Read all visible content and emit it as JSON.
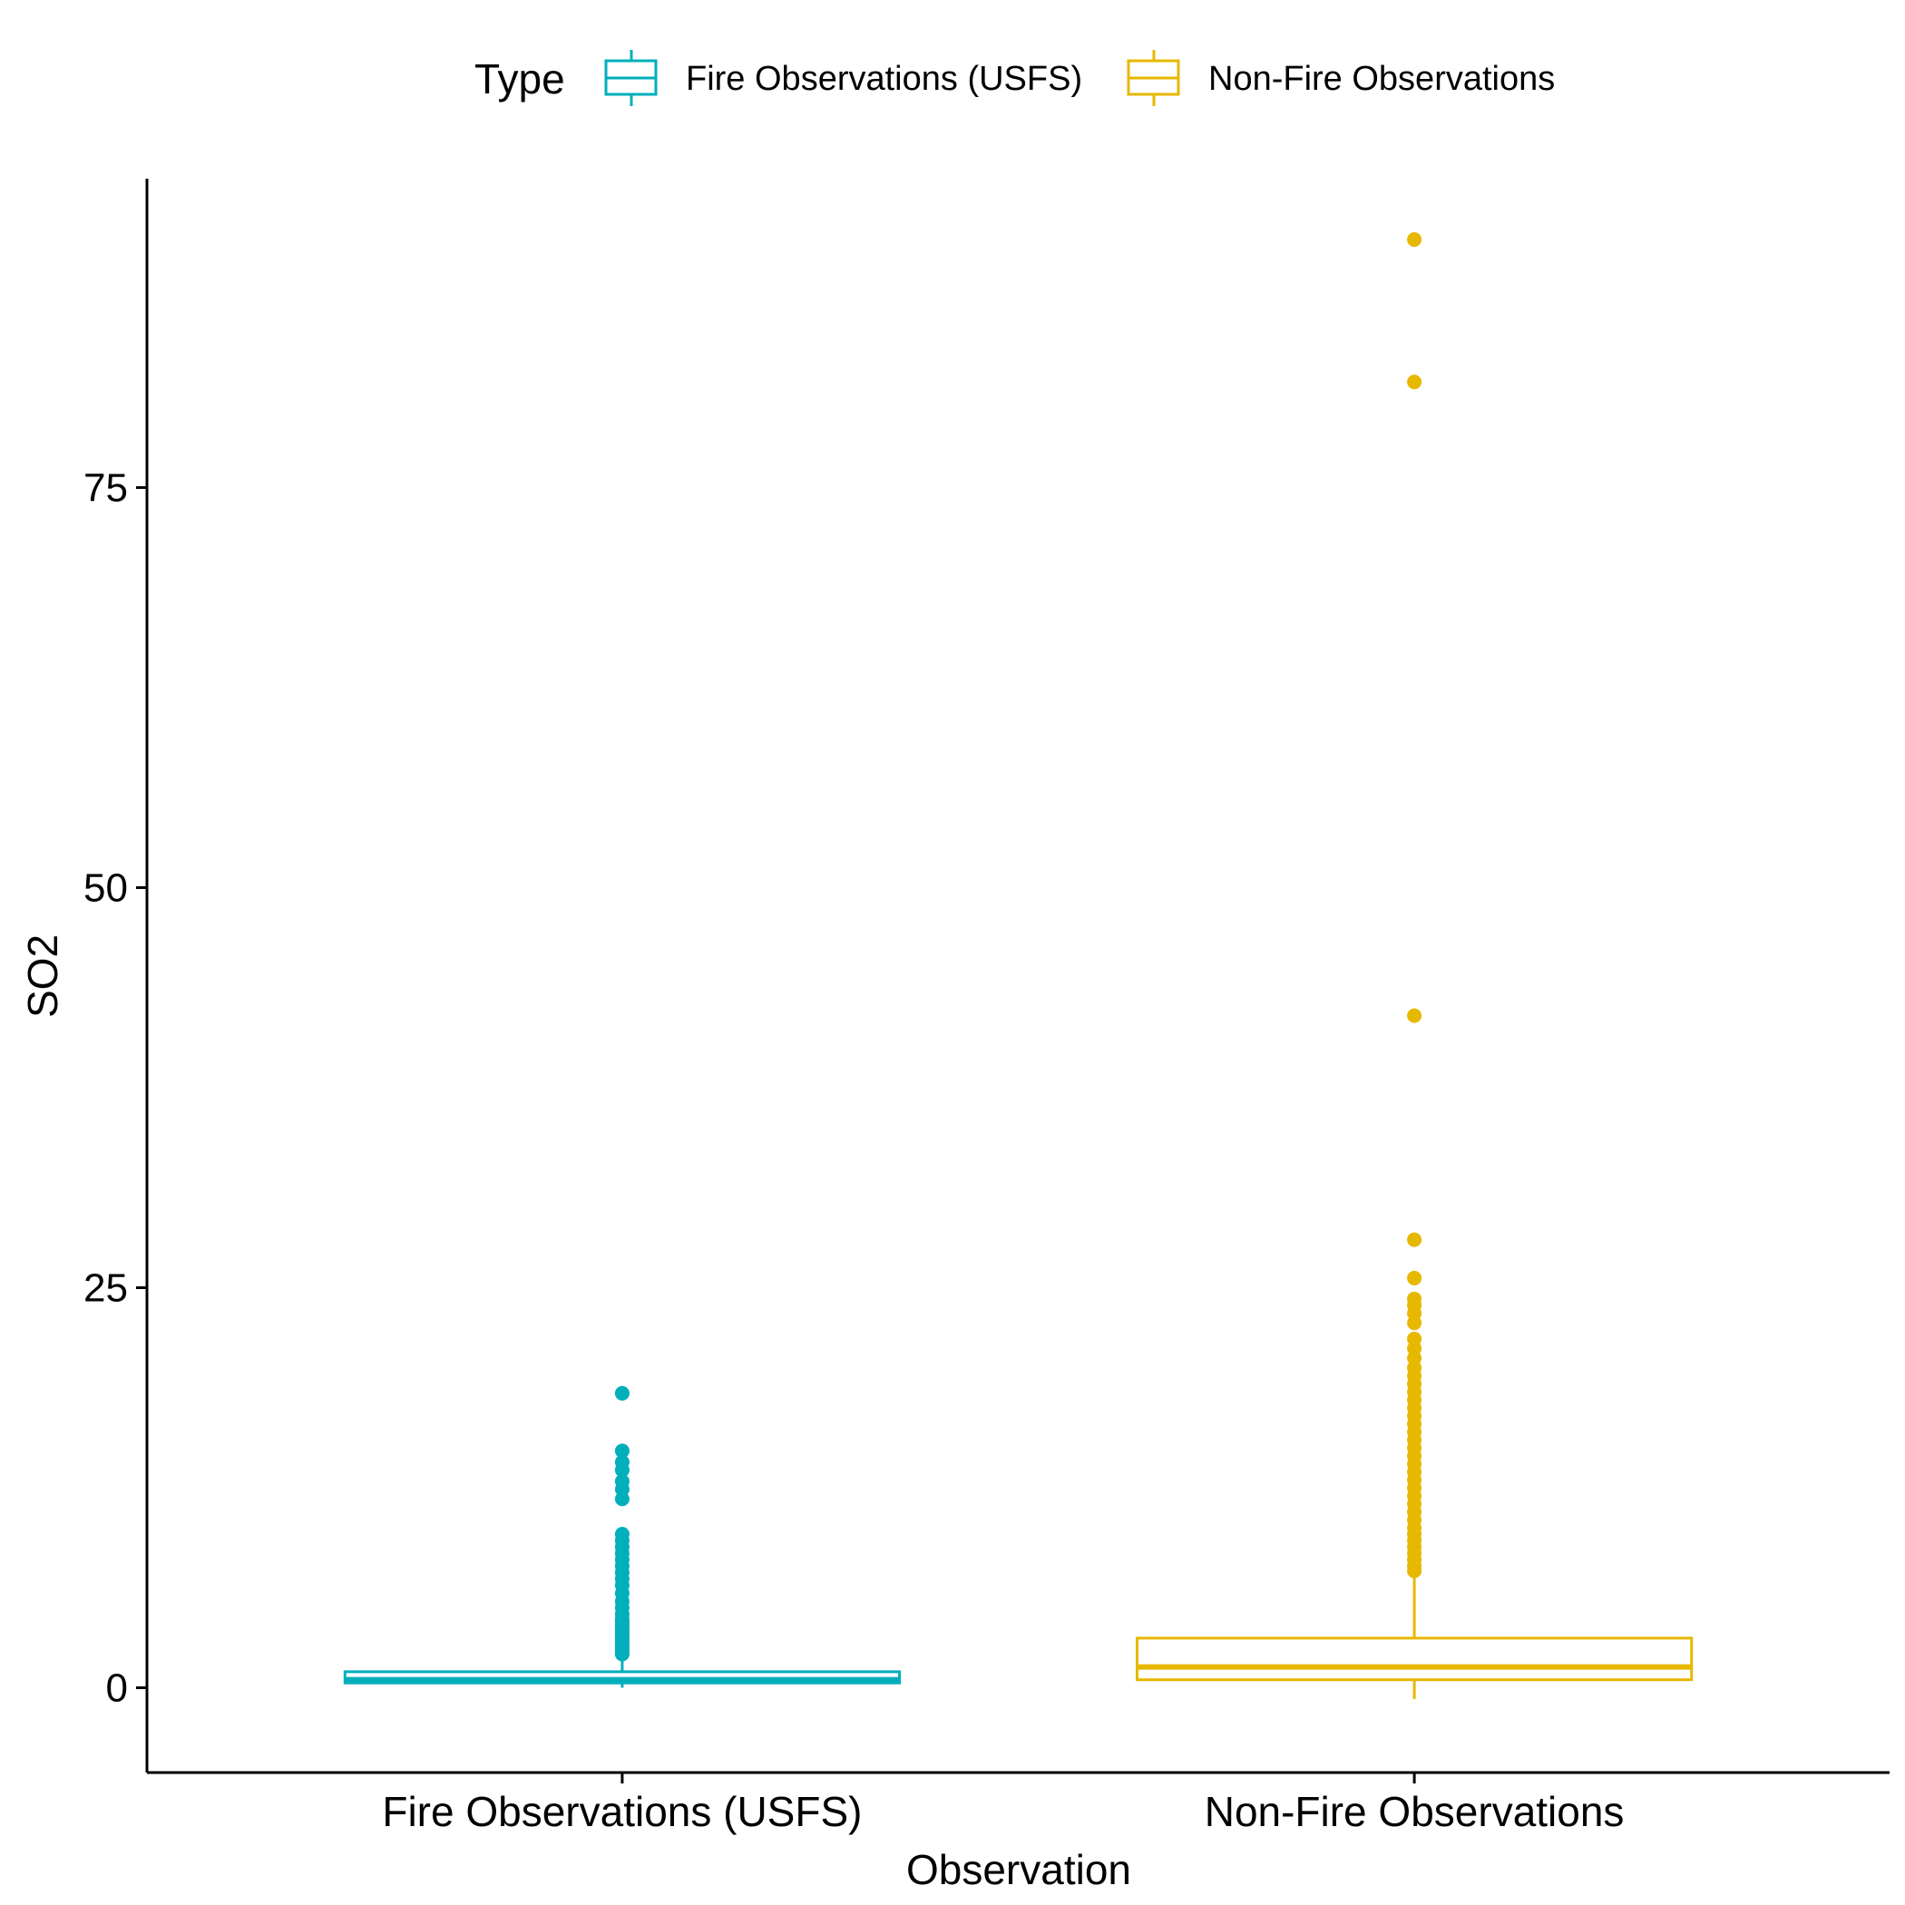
{
  "chart_data": {
    "type": "box",
    "title": "",
    "xlabel": "Observation",
    "ylabel": "SO2",
    "categories": [
      "Fire Observations (USFS)",
      "Non-Fire Observations"
    ],
    "ylim": [
      -5.3,
      94.3
    ],
    "yticks": [
      0,
      25,
      50,
      75
    ],
    "grid": false,
    "legend": {
      "title": "Type",
      "position": "top",
      "entries": [
        "Fire Observations (USFS)",
        "Non-Fire Observations"
      ]
    },
    "series": [
      {
        "name": "Fire Observations (USFS)",
        "color": "#00AFBB",
        "whisker_low": 0.0,
        "q1": 0.3,
        "median": 0.5,
        "q3": 1.0,
        "whisker_high": 1.7,
        "outliers": [
          2.1,
          2.3,
          2.5,
          2.7,
          2.9,
          3.1,
          3.3,
          3.5,
          3.7,
          3.9,
          4.1,
          4.3,
          4.6,
          5.0,
          5.4,
          5.9,
          6.4,
          6.8,
          7.2,
          7.6,
          8.0,
          8.4,
          8.8,
          9.2,
          9.6,
          11.8,
          12.4,
          12.9,
          13.6,
          14.1,
          14.8,
          18.4
        ]
      },
      {
        "name": "Non-Fire Observations",
        "color": "#E7B800",
        "whisker_low": -0.7,
        "q1": 0.5,
        "median": 1.3,
        "q3": 3.1,
        "whisker_high": 7.0,
        "outliers": [
          7.3,
          7.6,
          8.0,
          8.4,
          8.8,
          9.2,
          9.6,
          10.0,
          10.5,
          11.0,
          11.5,
          12.0,
          12.5,
          13.0,
          13.5,
          14.0,
          14.5,
          15.0,
          15.5,
          16.0,
          16.5,
          17.0,
          17.5,
          18.0,
          18.5,
          19.0,
          19.5,
          20.0,
          20.6,
          21.2,
          21.8,
          22.8,
          23.4,
          23.9,
          24.3,
          25.6,
          28.0,
          42.0,
          81.6,
          90.5
        ]
      }
    ]
  }
}
